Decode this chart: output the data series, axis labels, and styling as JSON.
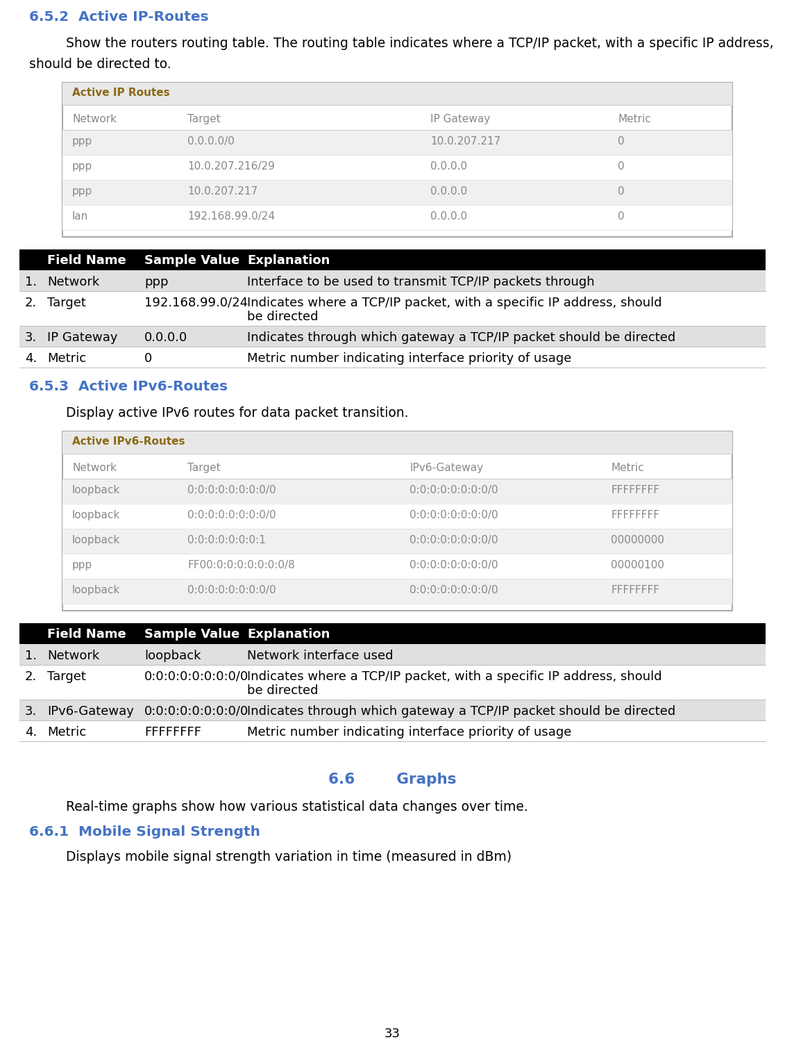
{
  "section_652_title": "6.5.2  Active IP-Routes",
  "section_652_line1": "Show the routers routing table. The routing table indicates where a TCP/IP packet, with a specific IP address,",
  "section_652_line2": "should be directed to.",
  "ip_routes_table_title": "Active IP Routes",
  "ip_routes_headers": [
    "Network",
    "Target",
    "IP Gateway",
    "Metric"
  ],
  "ip_routes_rows": [
    [
      "ppp",
      "0.0.0.0/0",
      "10.0.207.217",
      "0"
    ],
    [
      "ppp",
      "10.0.207.216/29",
      "0.0.0.0",
      "0"
    ],
    [
      "ppp",
      "10.0.207.217",
      "0.0.0.0",
      "0"
    ],
    [
      "lan",
      "192.168.99.0/24",
      "0.0.0.0",
      "0"
    ]
  ],
  "ip_fields_rows": [
    [
      "1.",
      "Network",
      "ppp",
      "Interface to be used to transmit TCP/IP packets through"
    ],
    [
      "2.",
      "Target",
      "192.168.99.0/24",
      "Indicates where a TCP/IP packet, with a specific IP address, should\nbe directed"
    ],
    [
      "3.",
      "IP Gateway",
      "0.0.0.0",
      "Indicates through which gateway a TCP/IP packet should be directed"
    ],
    [
      "4.",
      "Metric",
      "0",
      "Metric number indicating interface priority of usage"
    ]
  ],
  "section_653_title": "6.5.3  Active IPv6-Routes",
  "section_653_body": "Display active IPv6 routes for data packet transition.",
  "ipv6_routes_table_title": "Active IPv6-Routes",
  "ipv6_routes_headers": [
    "Network",
    "Target",
    "IPv6-Gateway",
    "Metric"
  ],
  "ipv6_routes_rows": [
    [
      "loopback",
      "0:0:0:0:0:0:0:0/0",
      "0:0:0:0:0:0:0:0/0",
      "FFFFFFFF"
    ],
    [
      "loopback",
      "0:0:0:0:0:0:0:0/0",
      "0:0:0:0:0:0:0:0/0",
      "FFFFFFFF"
    ],
    [
      "loopback",
      "0:0:0:0:0:0:0:1",
      "0:0:0:0:0:0:0:0/0",
      "00000000"
    ],
    [
      "ppp",
      "FF00:0:0:0:0:0:0:0/8",
      "0:0:0:0:0:0:0:0/0",
      "00000100"
    ],
    [
      "loopback",
      "0:0:0:0:0:0:0:0/0",
      "0:0:0:0:0:0:0:0/0",
      "FFFFFFFF"
    ]
  ],
  "ipv6_fields_rows": [
    [
      "1.",
      "Network",
      "loopback",
      "Network interface used"
    ],
    [
      "2.",
      "Target",
      "0:0:0:0:0:0:0:0/0",
      "Indicates where a TCP/IP packet, with a specific IP address, should\nbe directed"
    ],
    [
      "3.",
      "IPv6-Gateway",
      "0:0:0:0:0:0:0:0/0",
      "Indicates through which gateway a TCP/IP packet should be directed"
    ],
    [
      "4.",
      "Metric",
      "FFFFFFFF",
      "Metric number indicating interface priority of usage"
    ]
  ],
  "section_66_title": "6.6        Graphs",
  "section_66_body": "Real-time graphs show how various statistical data changes over time.",
  "section_661_title": "6.6.1  Mobile Signal Strength",
  "section_661_body": "Displays mobile signal strength variation in time (measured in dBm)",
  "page_number": "33",
  "blue_color": "#4472C4",
  "table_header_bg": "#000000",
  "table_header_fg": "#FFFFFF",
  "row_odd_bg": "#E0E0E0",
  "row_even_bg": "#FFFFFF",
  "screenshot_title_bg": "#E8E8E8",
  "screenshot_row_odd": "#F0F0F0",
  "screenshot_row_even": "#FFFFFF",
  "screenshot_title_color": "#8B6914",
  "screenshot_text_color": "#888888",
  "screenshot_border": "#AAAAAA"
}
